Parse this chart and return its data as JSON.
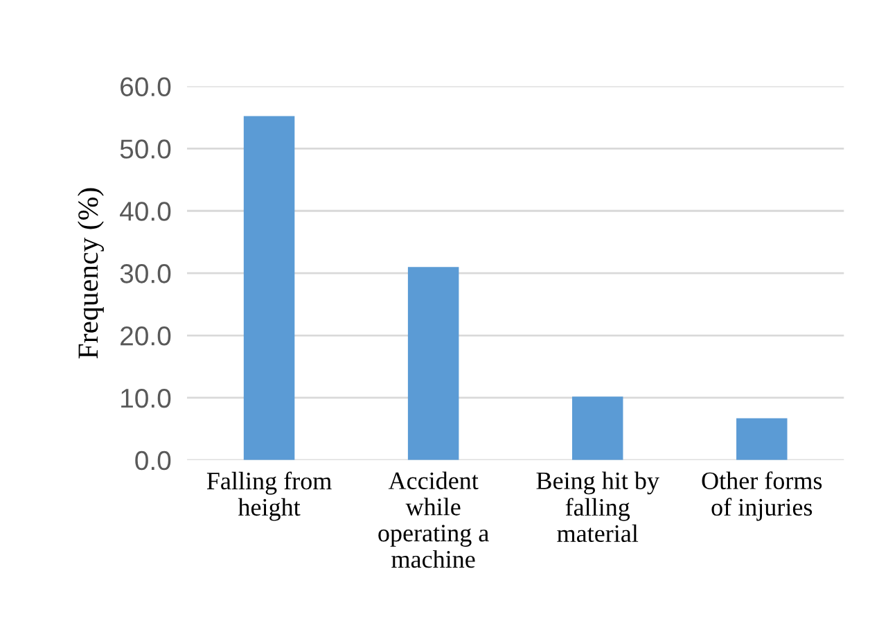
{
  "chart_data": {
    "type": "bar",
    "ylabel": "Frequency (%)",
    "categories": [
      "Falling from\nheight",
      "Accident\nwhile\noperating a\nmachine",
      "Being hit by\nfalling\nmaterial",
      "Other forms\nof injuries"
    ],
    "values": [
      55.2,
      31.0,
      10.2,
      6.7
    ],
    "color": "#5b9bd5",
    "ylim": [
      0,
      60
    ],
    "yticks": [
      {
        "value": 0,
        "label": "0.0"
      },
      {
        "value": 10,
        "label": "10.0"
      },
      {
        "value": 20,
        "label": "20.0"
      },
      {
        "value": 30,
        "label": "30.0"
      },
      {
        "value": 40,
        "label": "40.0"
      },
      {
        "value": 50,
        "label": "50.0"
      },
      {
        "value": 60,
        "label": "60.0"
      }
    ],
    "grid": "y"
  }
}
